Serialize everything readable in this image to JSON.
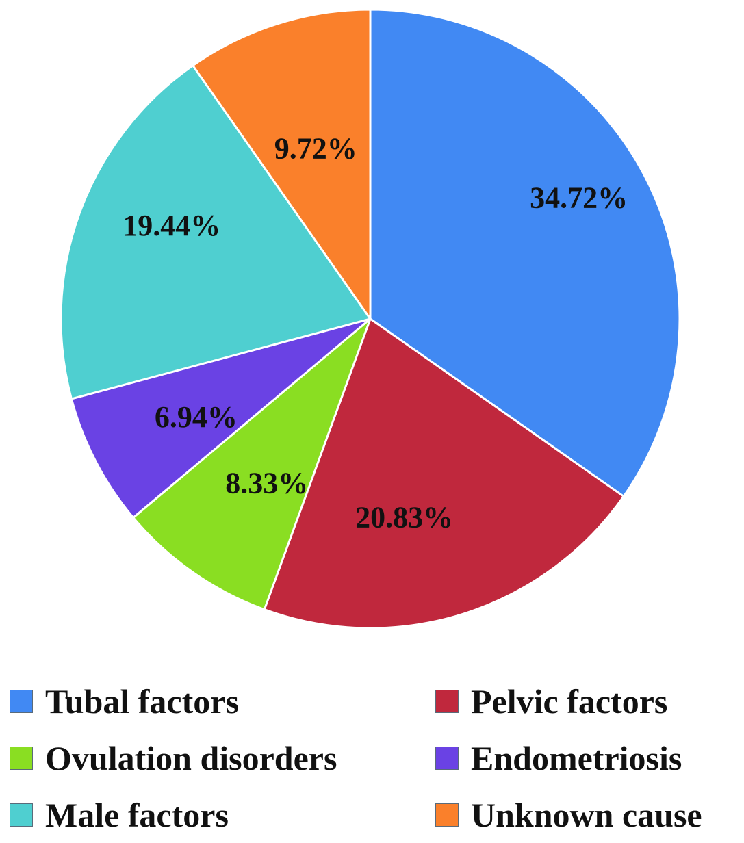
{
  "chart_data": {
    "type": "pie",
    "start_angle_deg": 0,
    "direction": "clockwise",
    "slices": [
      {
        "name": "Tubal factors",
        "value": 34.72,
        "label": "34.72%",
        "color": "#4189f3"
      },
      {
        "name": "Pelvic factors",
        "value": 20.83,
        "label": "20.83%",
        "color": "#c0283d"
      },
      {
        "name": "Ovulation disorders",
        "value": 8.33,
        "label": "8.33%",
        "color": "#8ade22"
      },
      {
        "name": "Endometriosis",
        "value": 6.94,
        "label": "6.94%",
        "color": "#6a42e4"
      },
      {
        "name": "Male factors",
        "value": 19.44,
        "label": "19.44%",
        "color": "#4fcfd0"
      },
      {
        "name": "Unknown cause",
        "value": 9.72,
        "label": "9.72%",
        "color": "#fa802b"
      }
    ],
    "legend": {
      "placement": "bottom",
      "columns": 2,
      "entries": [
        "Tubal factors",
        "Pelvic factors",
        "Ovulation disorders",
        "Endometriosis",
        "Male factors",
        "Unknown cause"
      ]
    }
  }
}
